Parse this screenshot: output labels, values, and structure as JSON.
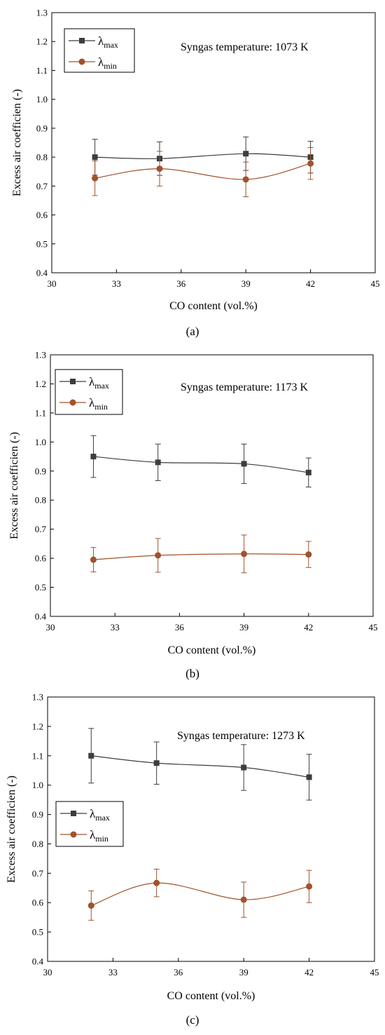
{
  "chart_data": [
    {
      "type": "line",
      "subfigure_label": "(a)",
      "annotation": "Syngas temperature: 1073 K",
      "xlabel": "CO content (vol.%)",
      "ylabel": "Excess air coefficien (-)",
      "xlim": [
        30,
        45
      ],
      "ylim": [
        0.4,
        1.3
      ],
      "x_ticks": [
        "30",
        "33",
        "36",
        "39",
        "42",
        "45"
      ],
      "y_ticks": [
        "0.4",
        "0.5",
        "0.6",
        "0.7",
        "0.8",
        "0.9",
        "1.0",
        "1.1",
        "1.2",
        "1.3"
      ],
      "grid": false,
      "legend_position": "top-left",
      "x": [
        32,
        35,
        39,
        42
      ],
      "series": [
        {
          "name": "λmax",
          "legend_symbol": "λ",
          "legend_sub": "max",
          "color": "#3d3d3d",
          "marker": "square",
          "values": [
            0.8,
            0.795,
            0.812,
            0.8
          ],
          "errors": [
            0.062,
            0.058,
            0.058,
            0.055
          ]
        },
        {
          "name": "λmin",
          "legend_symbol": "λ",
          "legend_sub": "min",
          "color": "#a0522d",
          "marker": "circle",
          "values": [
            0.727,
            0.76,
            0.723,
            0.778
          ],
          "errors": [
            0.06,
            0.06,
            0.06,
            0.055
          ]
        }
      ]
    },
    {
      "type": "line",
      "subfigure_label": "(b)",
      "annotation": "Syngas temperature: 1173 K",
      "xlabel": "CO content (vol.%)",
      "ylabel": "Excess air coefficien (-)",
      "xlim": [
        30,
        45
      ],
      "ylim": [
        0.4,
        1.3
      ],
      "x_ticks": [
        "30",
        "33",
        "36",
        "39",
        "42",
        "45"
      ],
      "y_ticks": [
        "0.4",
        "0.5",
        "0.6",
        "0.7",
        "0.8",
        "0.9",
        "1.0",
        "1.1",
        "1.2",
        "1.3"
      ],
      "grid": false,
      "legend_position": "top-left",
      "x": [
        32,
        35,
        39,
        42
      ],
      "series": [
        {
          "name": "λmax",
          "legend_symbol": "λ",
          "legend_sub": "max",
          "color": "#3d3d3d",
          "marker": "square",
          "values": [
            0.95,
            0.93,
            0.925,
            0.895
          ],
          "errors": [
            0.072,
            0.063,
            0.068,
            0.05
          ]
        },
        {
          "name": "λmin",
          "legend_symbol": "λ",
          "legend_sub": "min",
          "color": "#a0522d",
          "marker": "circle",
          "values": [
            0.595,
            0.61,
            0.615,
            0.613
          ],
          "errors": [
            0.042,
            0.058,
            0.065,
            0.045
          ]
        }
      ]
    },
    {
      "type": "line",
      "subfigure_label": "(c)",
      "annotation": "Syngas temperature: 1273 K",
      "xlabel": "CO content (vol.%)",
      "ylabel": "Excess air coefficien (-)",
      "xlim": [
        30,
        45
      ],
      "ylim": [
        0.4,
        1.3
      ],
      "x_ticks": [
        "30",
        "33",
        "36",
        "39",
        "42",
        "45"
      ],
      "y_ticks": [
        "0.4",
        "0.5",
        "0.6",
        "0.7",
        "0.8",
        "0.9",
        "1.0",
        "1.1",
        "1.2",
        "1.3"
      ],
      "grid": false,
      "legend_position": "center-left",
      "x": [
        32,
        35,
        39,
        42
      ],
      "series": [
        {
          "name": "λmax",
          "legend_symbol": "λ",
          "legend_sub": "max",
          "color": "#3d3d3d",
          "marker": "square",
          "values": [
            1.1,
            1.075,
            1.06,
            1.027
          ],
          "errors": [
            0.093,
            0.072,
            0.078,
            0.078
          ]
        },
        {
          "name": "λmin",
          "legend_symbol": "λ",
          "legend_sub": "min",
          "color": "#a0522d",
          "marker": "circle",
          "values": [
            0.59,
            0.667,
            0.61,
            0.655
          ],
          "errors": [
            0.05,
            0.047,
            0.06,
            0.055
          ]
        }
      ]
    }
  ]
}
